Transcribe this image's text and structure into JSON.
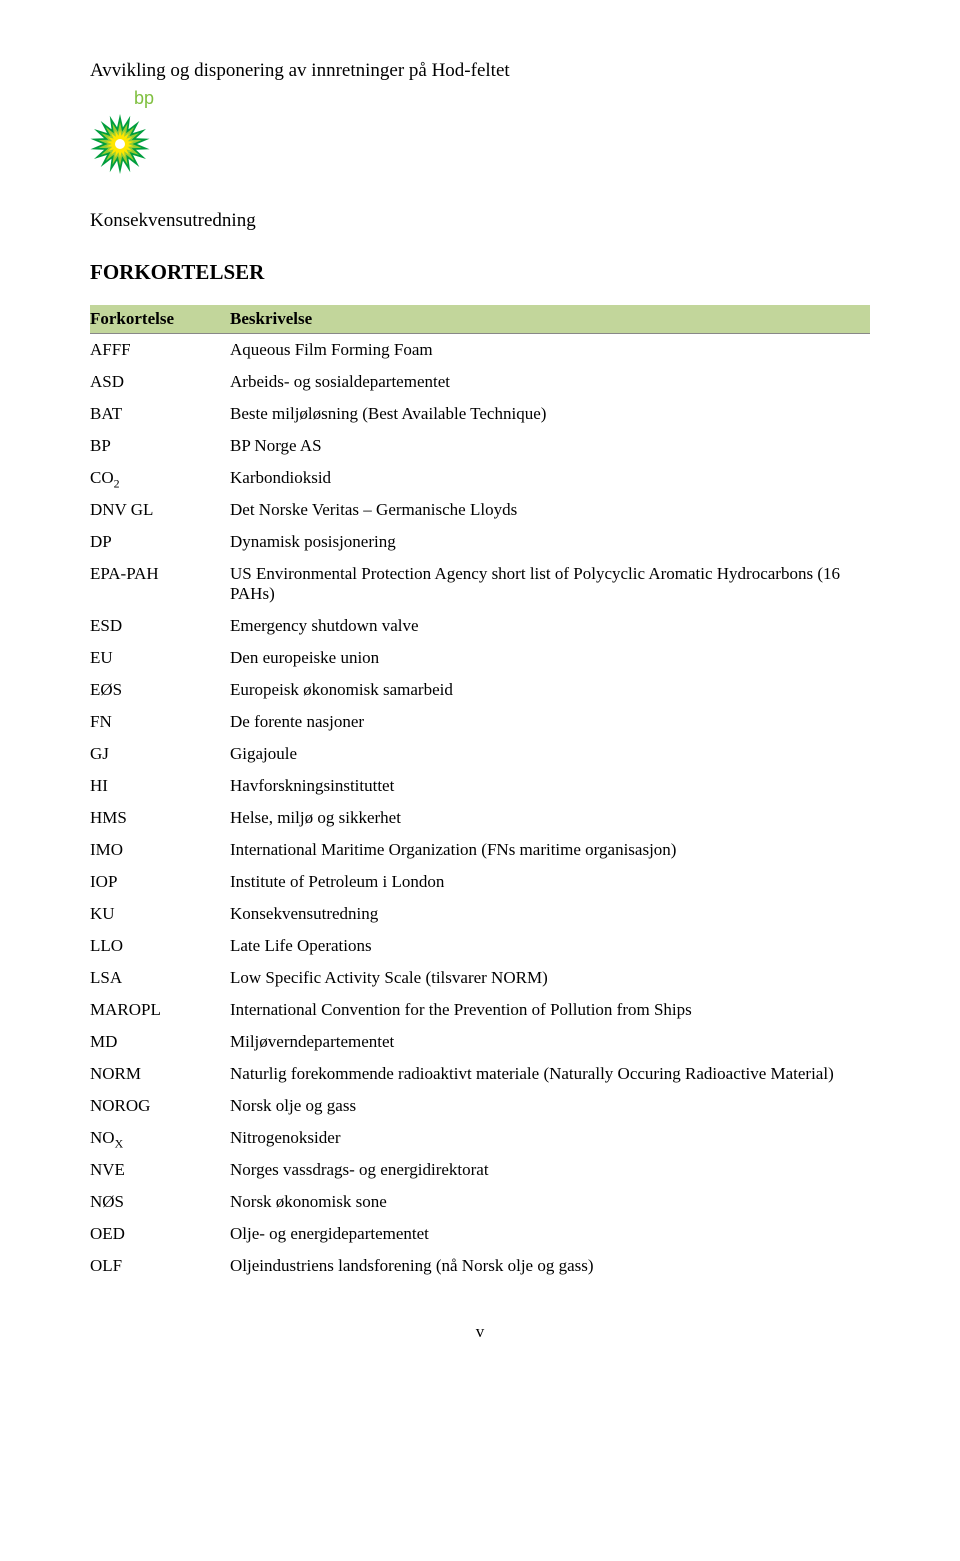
{
  "header": {
    "title": "Avvikling og disponering av innretninger på Hod-feltet",
    "subtitle": "Konsekvensutredning",
    "section_title": "FORKORTELSER"
  },
  "logo": {
    "name": "bp-logo",
    "text": "bp",
    "colors": {
      "text": "#7fbf3f",
      "outer": "#009e3d",
      "mid": "#9acd32",
      "inner": "#ffe600",
      "core": "#ffffff"
    }
  },
  "table": {
    "header_bg": "#c2d69b",
    "col1_label": "Forkortelse",
    "col2_label": "Beskrivelse",
    "rows": [
      {
        "key": "AFFF",
        "key_sub": "",
        "value": "Aqueous Film Forming Foam"
      },
      {
        "key": "ASD",
        "key_sub": "",
        "value": "Arbeids- og sosialdepartementet"
      },
      {
        "key": "BAT",
        "key_sub": "",
        "value": "Beste miljøløsning (Best Available Technique)"
      },
      {
        "key": "BP",
        "key_sub": "",
        "value": "BP Norge AS"
      },
      {
        "key": "CO",
        "key_sub": "2",
        "value": "Karbondioksid"
      },
      {
        "key": "DNV GL",
        "key_sub": "",
        "value": "Det Norske Veritas – Germanische Lloyds"
      },
      {
        "key": "DP",
        "key_sub": "",
        "value": "Dynamisk posisjonering"
      },
      {
        "key": "EPA-PAH",
        "key_sub": "",
        "value": "US Environmental Protection Agency short list of Polycyclic Aromatic Hydrocarbons (16 PAHs)"
      },
      {
        "key": "ESD",
        "key_sub": "",
        "value": "Emergency shutdown valve"
      },
      {
        "key": "EU",
        "key_sub": "",
        "value": "Den europeiske union"
      },
      {
        "key": "EØS",
        "key_sub": "",
        "value": "Europeisk økonomisk samarbeid"
      },
      {
        "key": "FN",
        "key_sub": "",
        "value": "De forente nasjoner"
      },
      {
        "key": "GJ",
        "key_sub": "",
        "value": "Gigajoule"
      },
      {
        "key": "HI",
        "key_sub": "",
        "value": "Havforskningsinstituttet"
      },
      {
        "key": "HMS",
        "key_sub": "",
        "value": "Helse, miljø og sikkerhet"
      },
      {
        "key": "IMO",
        "key_sub": "",
        "value": "International Maritime Organization (FNs maritime organisasjon)"
      },
      {
        "key": "IOP",
        "key_sub": "",
        "value": "Institute of Petroleum i London"
      },
      {
        "key": "KU",
        "key_sub": "",
        "value": "Konsekvensutredning"
      },
      {
        "key": "LLO",
        "key_sub": "",
        "value": "Late Life Operations"
      },
      {
        "key": "LSA",
        "key_sub": "",
        "value": "Low Specific Activity Scale (tilsvarer NORM)"
      },
      {
        "key": "MAROPL",
        "key_sub": "",
        "value": "International Convention for the Prevention of Pollution from Ships"
      },
      {
        "key": "MD",
        "key_sub": "",
        "value": "Miljøverndepartementet"
      },
      {
        "key": "NORM",
        "key_sub": "",
        "value": "Naturlig forekommende radioaktivt materiale (Naturally Occuring Radioactive Material)"
      },
      {
        "key": "NOROG",
        "key_sub": "",
        "value": "Norsk olje og gass"
      },
      {
        "key": "NO",
        "key_sub": "X",
        "value": "Nitrogenoksider"
      },
      {
        "key": "NVE",
        "key_sub": "",
        "value": "Norges vassdrags- og energidirektorat"
      },
      {
        "key": "NØS",
        "key_sub": "",
        "value": "Norsk økonomisk sone"
      },
      {
        "key": "OED",
        "key_sub": "",
        "value": "Olje- og energidepartementet"
      },
      {
        "key": "OLF",
        "key_sub": "",
        "value": "Oljeindustriens landsforening (nå Norsk olje og gass)"
      }
    ]
  },
  "footer": {
    "page_number": "v"
  }
}
